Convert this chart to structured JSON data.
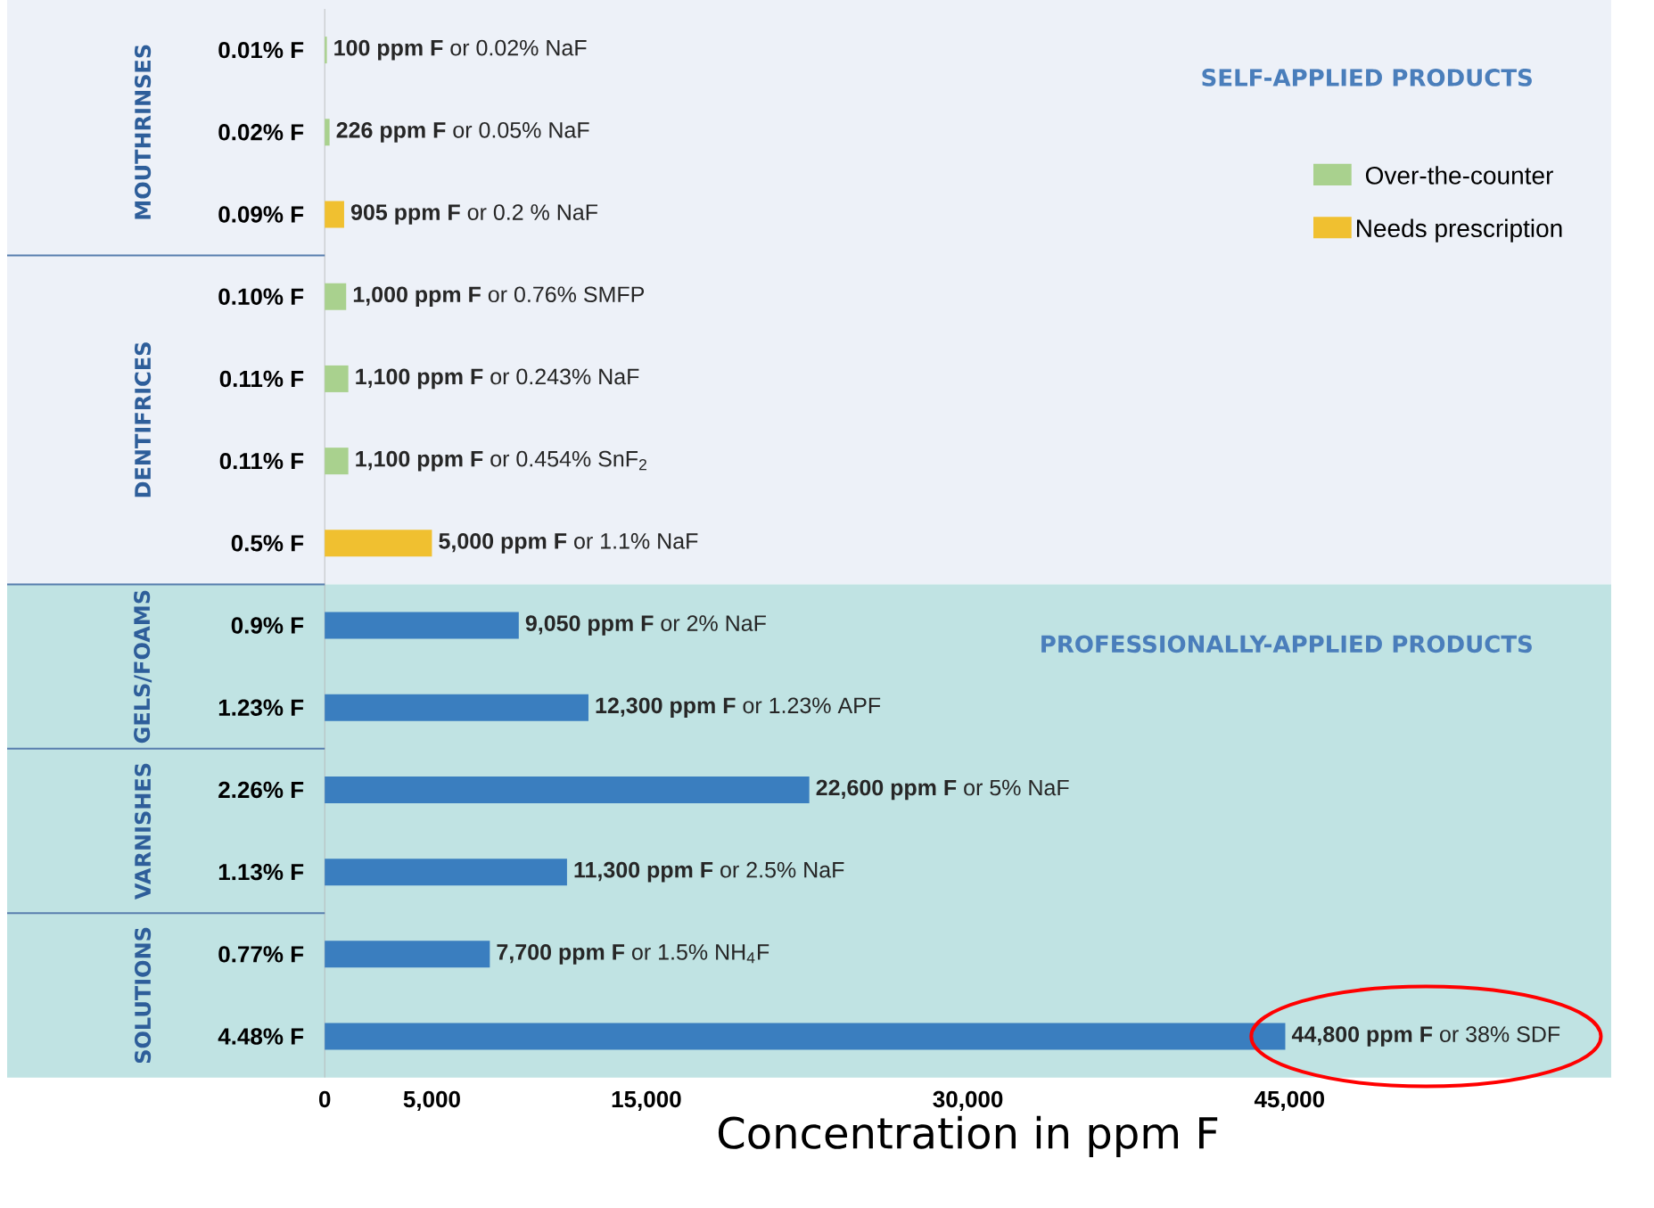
{
  "chart_data": {
    "type": "bar",
    "orientation": "horizontal",
    "xlabel": "Concentration in ppm F",
    "categories": [
      "0.01% F",
      "0.02% F",
      "0.09% F",
      "0.10% F",
      "0.11% F",
      "0.11% F",
      "0.5% F",
      "0.9% F",
      "1.23% F",
      "2.26% F",
      "1.13% F",
      "0.77% F",
      "4.48% F"
    ],
    "series": [
      {
        "name": "Over-the-counter",
        "color": "#a9d18e",
        "values": [
          100,
          226,
          null,
          1000,
          1100,
          1100,
          null,
          null,
          null,
          null,
          null,
          null,
          null
        ],
        "value_labels": [
          "**100 ppm F** or 0.02% NaF",
          "**226 ppm F** or 0.05% NaF",
          null,
          "**1,000 ppm F** or 0.76% SMFP",
          "**1,100 ppm F** or 0.243% NaF",
          "**1,100 ppm F** or 0.454% SnF$_{2}$",
          null,
          null,
          null,
          null,
          null,
          null,
          null
        ]
      },
      {
        "name": "Needs prescription",
        "color": "#f0c030",
        "values": [
          null,
          null,
          905,
          null,
          null,
          null,
          5000,
          null,
          null,
          null,
          null,
          null,
          null
        ],
        "value_labels": [
          null,
          null,
          "**905 ppm F** or 0.2 % NaF",
          null,
          null,
          null,
          "**5,000 ppm F** or 1.1% NaF",
          null,
          null,
          null,
          null,
          null,
          null
        ]
      },
      {
        "color": "#3a7ebf",
        "values": [
          null,
          null,
          null,
          null,
          null,
          null,
          null,
          9050,
          12300,
          22600,
          11300,
          7700,
          44800
        ],
        "value_labels": [
          null,
          null,
          null,
          null,
          null,
          null,
          null,
          "**9,050 ppm F** or 2% NaF",
          "**12,300 ppm F** or 1.23% APF",
          "**22,600 ppm F** or 5% NaF",
          "**11,300 ppm F** or 2.5% NaF",
          "**7,700 ppm F** or 1.5% NH$_{4}$F",
          "**44,800 ppm F** or 38% SDF"
        ]
      }
    ],
    "xlim": [
      0,
      60000
    ],
    "xticks": [
      0,
      {
        "value": 5000,
        "label": "5,000"
      },
      {
        "value": 15000,
        "label": "15,000"
      },
      {
        "value": 30000,
        "label": "30,000"
      },
      {
        "value": 45000,
        "label": "45,000"
      }
    ],
    "bands": [
      {
        "axis": "y",
        "from": "0.01% F",
        "to": "0.5% F",
        "label": "SELF-APPLIED PRODUCTS",
        "color": "#edf1f8"
      },
      {
        "axis": "y",
        "from": "0.9% F",
        "to": "4.48% F",
        "label": "PROFESSIONALLY-APPLIED PRODUCTS",
        "color": "#c0e3e3"
      }
    ],
    "annotations": [
      "MOUTHRINSES",
      "DENTIFRICES",
      "GELS/FOAMS",
      "VARNISHES",
      "SOLUTIONS"
    ],
    "legend": "top right",
    "grid": false
  }
}
